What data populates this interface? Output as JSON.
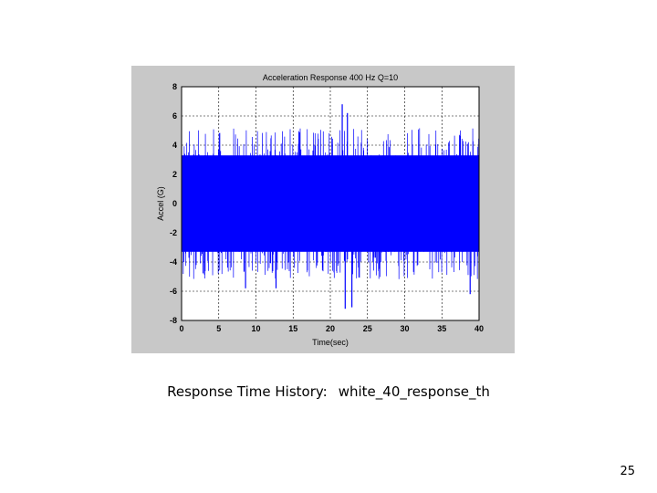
{
  "chart_data": {
    "type": "line",
    "title": "Acceleration Response 400 Hz Q=10",
    "xlabel": "Time(sec)",
    "ylabel": "Accel (G)",
    "xlim": [
      0,
      40
    ],
    "ylim": [
      -8,
      8
    ],
    "xticks": [
      "0",
      "5",
      "10",
      "15",
      "20",
      "25",
      "30",
      "35",
      "40"
    ],
    "yticks": [
      "8",
      "6",
      "4",
      "2",
      "0",
      "-2",
      "-4",
      "-6",
      "-8"
    ],
    "grid": true,
    "series_color": "#0000ff",
    "envelope": {
      "dense_band": [
        -3.3,
        3.3
      ],
      "typical_peaks": [
        -5.0,
        5.0
      ],
      "max": 6.8,
      "min": -7.2
    },
    "notable_peaks": [
      {
        "x": 21.6,
        "y": 6.8
      },
      {
        "x": 22.3,
        "y": 6.2
      },
      {
        "x": 22.0,
        "y": -7.2
      },
      {
        "x": 22.9,
        "y": -7.1
      },
      {
        "x": 38.8,
        "y": -6.2
      },
      {
        "x": 12.7,
        "y": -5.8
      },
      {
        "x": 8.6,
        "y": -5.8
      }
    ]
  },
  "caption": {
    "label": "Response Time History:",
    "filename": "white_40_response_th"
  },
  "page_number": "25"
}
